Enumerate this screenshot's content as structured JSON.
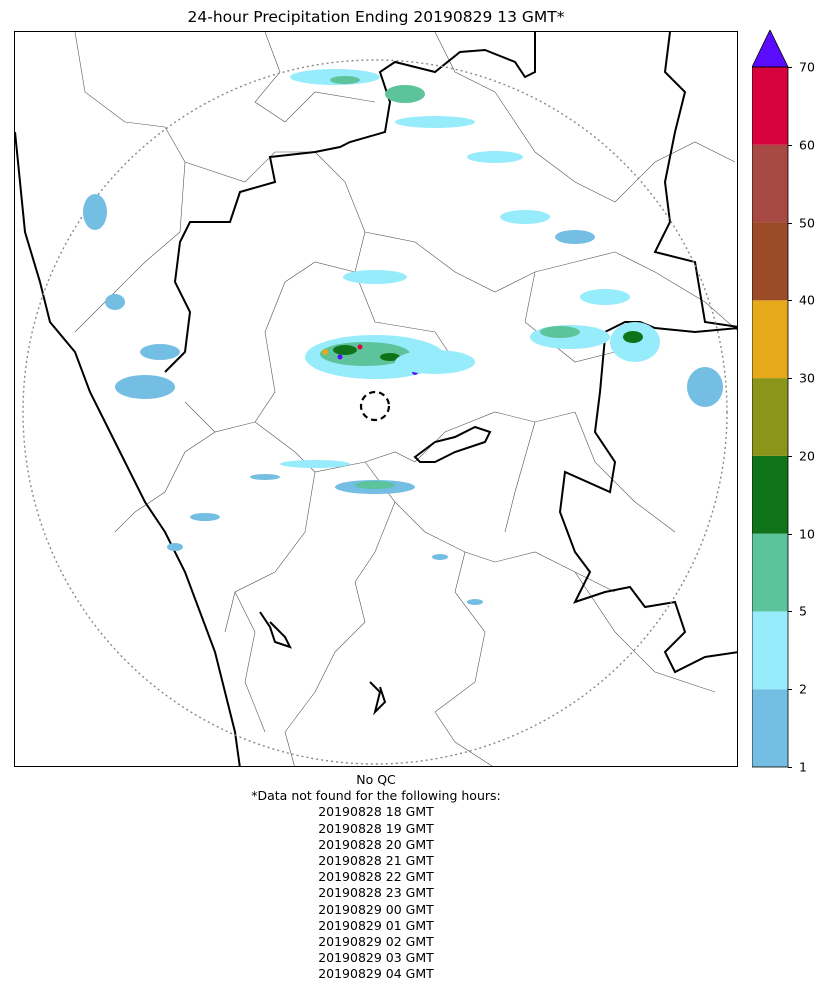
{
  "title": "24-hour Precipitation Ending 20190829 13 GMT*",
  "qc_label": "No QC",
  "missing_header": "*Data not found for the following hours:",
  "missing_hours": [
    "20190828 18 GMT",
    "20190828 19 GMT",
    "20190828 20 GMT",
    "20190828 21 GMT",
    "20190828 22 GMT",
    "20190828 23 GMT",
    "20190829 00 GMT",
    "20190829 01 GMT",
    "20190829 02 GMT",
    "20190829 03 GMT",
    "20190829 04 GMT"
  ],
  "colorbar": {
    "ticks": [
      "1",
      "2",
      "5",
      "10",
      "20",
      "30",
      "40",
      "50",
      "60",
      "70"
    ],
    "bins": [
      {
        "from": 1,
        "to": 2,
        "color": "#74bde3"
      },
      {
        "from": 2,
        "to": 5,
        "color": "#97ecfc"
      },
      {
        "from": 5,
        "to": 10,
        "color": "#5cc39a"
      },
      {
        "from": 10,
        "to": 20,
        "color": "#0f731a"
      },
      {
        "from": 20,
        "to": 30,
        "color": "#8a9519"
      },
      {
        "from": 30,
        "to": 40,
        "color": "#e6a91a"
      },
      {
        "from": 40,
        "to": 50,
        "color": "#9b4b27"
      },
      {
        "from": 50,
        "to": 60,
        "color": "#a64a43"
      },
      {
        "from": 60,
        "to": 70,
        "color": "#d6033f"
      }
    ],
    "extend_max_color": "#5a0cff"
  },
  "map": {
    "coast_color": "#000000",
    "district_color": "#555555",
    "range_ring_color": "#888888"
  }
}
